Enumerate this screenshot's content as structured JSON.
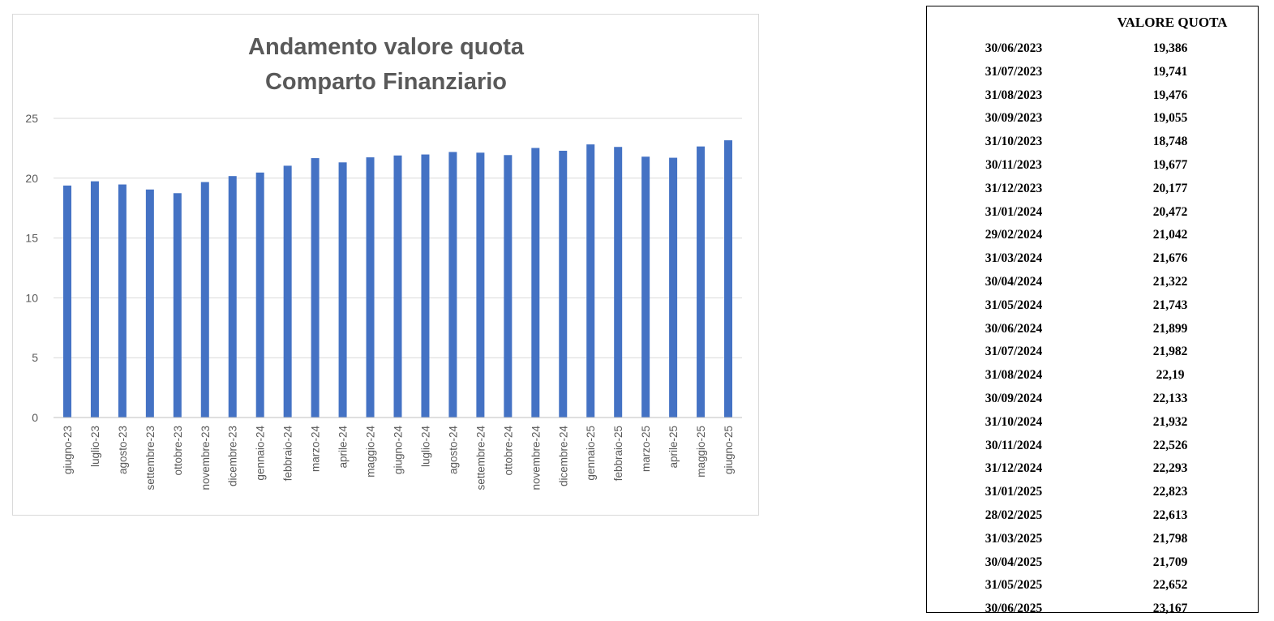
{
  "chart_data": {
    "type": "bar",
    "title": [
      "Andamento valore quota",
      "Comparto Finanziario"
    ],
    "xlabel": "",
    "ylabel": "",
    "ylim": [
      0,
      25
    ],
    "yticks": [
      "0",
      "5",
      "10",
      "15",
      "20",
      "25"
    ],
    "grid": true,
    "legend": "none",
    "bar_color": "#4472c4",
    "categories": [
      "giugno-23",
      "luglio-23",
      "agosto-23",
      "settembre-23",
      "ottobre-23",
      "novembre-23",
      "dicembre-23",
      "gennaio-24",
      "febbraio-24",
      "marzo-24",
      "aprile-24",
      "maggio-24",
      "giugno-24",
      "luglio-24",
      "agosto-24",
      "settembre-24",
      "ottobre-24",
      "novembre-24",
      "dicembre-24",
      "gennaio-25",
      "febbraio-25",
      "marzo-25",
      "aprile-25",
      "maggio-25",
      "giugno-25"
    ],
    "values": [
      19.386,
      19.741,
      19.476,
      19.055,
      18.748,
      19.677,
      20.177,
      20.472,
      21.042,
      21.676,
      21.322,
      21.743,
      21.899,
      21.982,
      22.19,
      22.133,
      21.932,
      22.526,
      22.293,
      22.823,
      22.613,
      21.798,
      21.709,
      22.652,
      23.167
    ]
  },
  "table": {
    "header_value": "VALORE QUOTA",
    "rows": [
      {
        "date": "30/06/2023",
        "value": "19,386"
      },
      {
        "date": "31/07/2023",
        "value": "19,741"
      },
      {
        "date": "31/08/2023",
        "value": "19,476"
      },
      {
        "date": "30/09/2023",
        "value": "19,055"
      },
      {
        "date": "31/10/2023",
        "value": "18,748"
      },
      {
        "date": "30/11/2023",
        "value": "19,677"
      },
      {
        "date": "31/12/2023",
        "value": "20,177"
      },
      {
        "date": "31/01/2024",
        "value": "20,472"
      },
      {
        "date": "29/02/2024",
        "value": "21,042"
      },
      {
        "date": "31/03/2024",
        "value": "21,676"
      },
      {
        "date": "30/04/2024",
        "value": "21,322"
      },
      {
        "date": "31/05/2024",
        "value": "21,743"
      },
      {
        "date": "30/06/2024",
        "value": "21,899"
      },
      {
        "date": "31/07/2024",
        "value": "21,982"
      },
      {
        "date": "31/08/2024",
        "value": "22,19"
      },
      {
        "date": "30/09/2024",
        "value": "22,133"
      },
      {
        "date": "31/10/2024",
        "value": "21,932"
      },
      {
        "date": "30/11/2024",
        "value": "22,526"
      },
      {
        "date": "31/12/2024",
        "value": "22,293"
      },
      {
        "date": "31/01/2025",
        "value": "22,823"
      },
      {
        "date": "28/02/2025",
        "value": "22,613"
      },
      {
        "date": "31/03/2025",
        "value": "21,798"
      },
      {
        "date": "30/04/2025",
        "value": "21,709"
      },
      {
        "date": "31/05/2025",
        "value": "22,652"
      },
      {
        "date": "30/06/2025",
        "value": "23,167"
      }
    ]
  }
}
